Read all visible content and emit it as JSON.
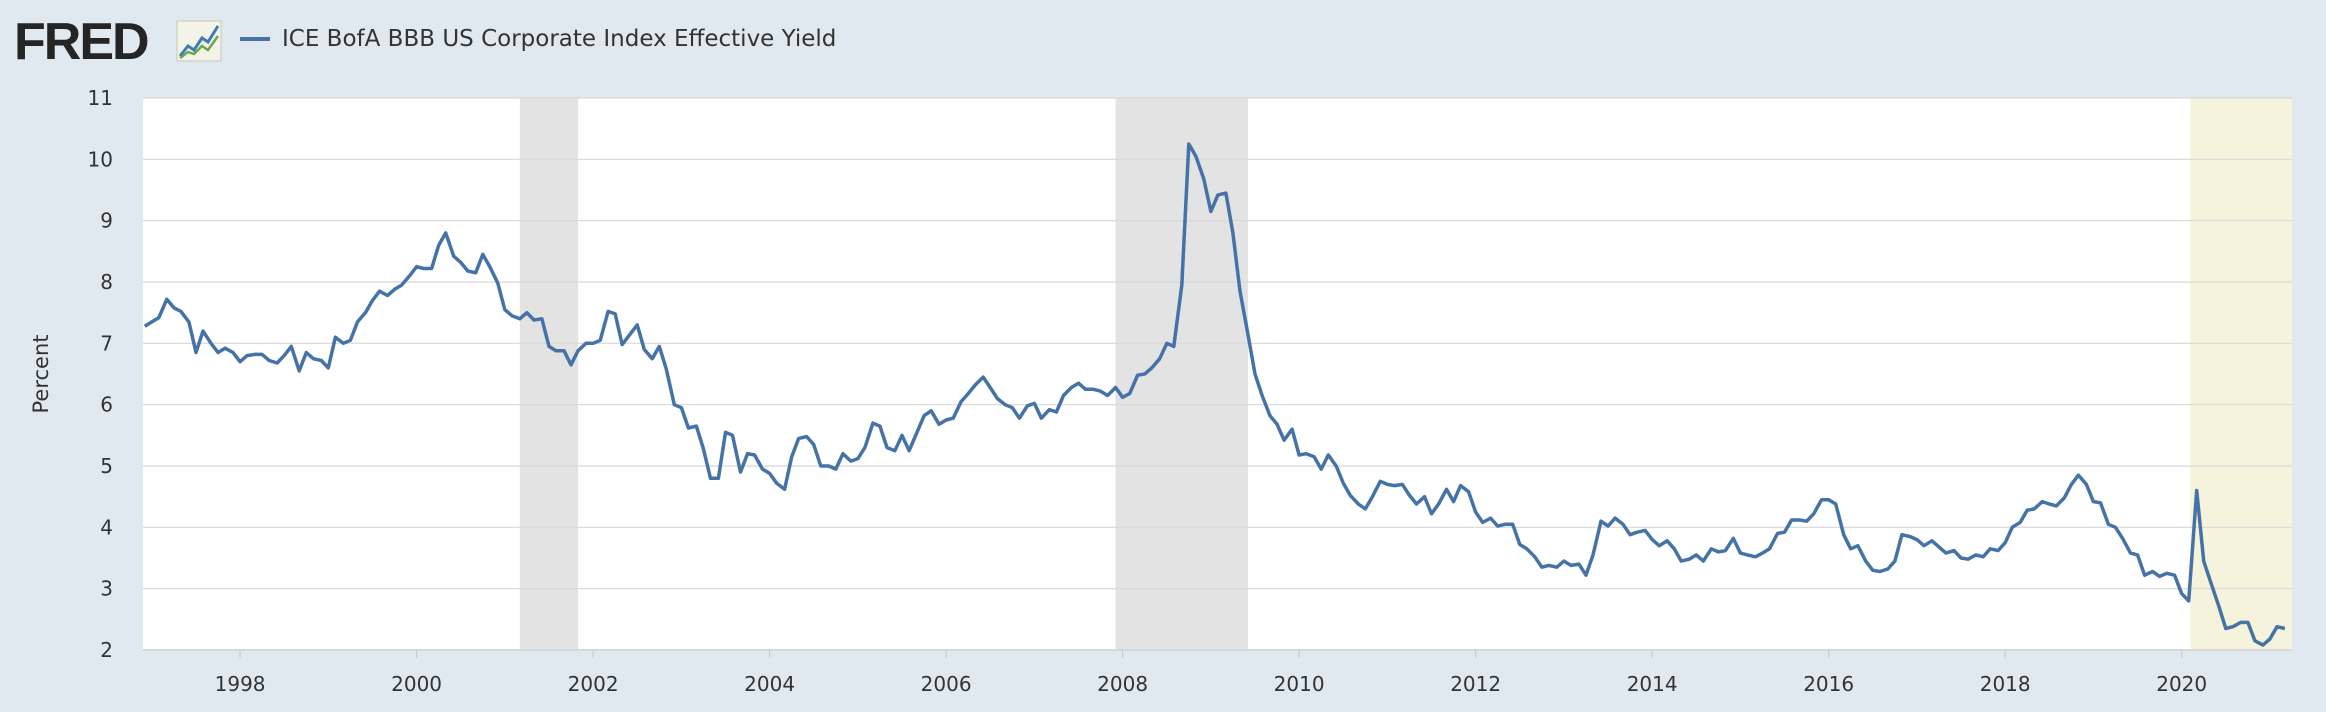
{
  "header": {
    "logo_text": "FRED",
    "logo_icon": "fred-chart-icon",
    "legend_label": "ICE BofA BBB US Corporate Index Effective Yield"
  },
  "colors": {
    "background": "#e1e9f0",
    "plot_background": "#ffffff",
    "series_line": "#4572a7",
    "recession_shade": "#e3e3e3",
    "highlight_shade": "#f5f3dc",
    "gridline": "#d8d8d8"
  },
  "chart_data": {
    "type": "line",
    "title": "",
    "xlabel": "",
    "ylabel": "Percent",
    "xlim": [
      1996.9,
      2021.25
    ],
    "ylim": [
      2,
      11
    ],
    "grid": true,
    "legend_position": "top-left",
    "x_ticks": [
      "1998",
      "2000",
      "2002",
      "2004",
      "2006",
      "2008",
      "2010",
      "2012",
      "2014",
      "2016",
      "2018",
      "2020"
    ],
    "y_ticks": [
      "2",
      "3",
      "4",
      "5",
      "6",
      "7",
      "8",
      "9",
      "10",
      "11"
    ],
    "shaded_periods": [
      {
        "start": 2001.17,
        "end": 2001.83,
        "kind": "recession"
      },
      {
        "start": 2007.92,
        "end": 2009.42,
        "kind": "recession"
      },
      {
        "start": 2020.1,
        "end": 2021.25,
        "kind": "highlight"
      }
    ],
    "series": [
      {
        "name": "ICE BofA BBB US Corporate Index Effective Yield",
        "x": [
          1996.92,
          1997.0,
          1997.08,
          1997.17,
          1997.25,
          1997.33,
          1997.42,
          1997.5,
          1997.58,
          1997.67,
          1997.75,
          1997.83,
          1997.92,
          1998.0,
          1998.08,
          1998.17,
          1998.25,
          1998.33,
          1998.42,
          1998.5,
          1998.58,
          1998.67,
          1998.75,
          1998.83,
          1998.92,
          1999.0,
          1999.08,
          1999.17,
          1999.25,
          1999.33,
          1999.42,
          1999.5,
          1999.58,
          1999.67,
          1999.75,
          1999.83,
          1999.92,
          2000.0,
          2000.08,
          2000.17,
          2000.25,
          2000.33,
          2000.42,
          2000.5,
          2000.58,
          2000.67,
          2000.75,
          2000.83,
          2000.92,
          2001.0,
          2001.08,
          2001.17,
          2001.25,
          2001.33,
          2001.42,
          2001.5,
          2001.58,
          2001.67,
          2001.75,
          2001.83,
          2001.92,
          2002.0,
          2002.08,
          2002.17,
          2002.25,
          2002.33,
          2002.42,
          2002.5,
          2002.58,
          2002.67,
          2002.75,
          2002.83,
          2002.92,
          2003.0,
          2003.08,
          2003.17,
          2003.25,
          2003.33,
          2003.42,
          2003.5,
          2003.58,
          2003.67,
          2003.75,
          2003.83,
          2003.92,
          2004.0,
          2004.08,
          2004.17,
          2004.25,
          2004.33,
          2004.42,
          2004.5,
          2004.58,
          2004.67,
          2004.75,
          2004.83,
          2004.92,
          2005.0,
          2005.08,
          2005.17,
          2005.25,
          2005.33,
          2005.42,
          2005.5,
          2005.58,
          2005.67,
          2005.75,
          2005.83,
          2005.92,
          2006.0,
          2006.08,
          2006.17,
          2006.25,
          2006.33,
          2006.42,
          2006.5,
          2006.58,
          2006.67,
          2006.75,
          2006.83,
          2006.92,
          2007.0,
          2007.08,
          2007.17,
          2007.25,
          2007.33,
          2007.42,
          2007.5,
          2007.58,
          2007.67,
          2007.75,
          2007.83,
          2007.92,
          2008.0,
          2008.08,
          2008.17,
          2008.25,
          2008.33,
          2008.42,
          2008.5,
          2008.58,
          2008.67,
          2008.75,
          2008.83,
          2008.92,
          2009.0,
          2009.08,
          2009.17,
          2009.25,
          2009.33,
          2009.42,
          2009.5,
          2009.58,
          2009.67,
          2009.75,
          2009.83,
          2009.92,
          2010.0,
          2010.08,
          2010.17,
          2010.25,
          2010.33,
          2010.42,
          2010.5,
          2010.58,
          2010.67,
          2010.75,
          2010.83,
          2010.92,
          2011.0,
          2011.08,
          2011.17,
          2011.25,
          2011.33,
          2011.42,
          2011.5,
          2011.58,
          2011.67,
          2011.75,
          2011.83,
          2011.92,
          2012.0,
          2012.08,
          2012.17,
          2012.25,
          2012.33,
          2012.42,
          2012.5,
          2012.58,
          2012.67,
          2012.75,
          2012.83,
          2012.92,
          2013.0,
          2013.08,
          2013.17,
          2013.25,
          2013.33,
          2013.42,
          2013.5,
          2013.58,
          2013.67,
          2013.75,
          2013.83,
          2013.92,
          2014.0,
          2014.08,
          2014.17,
          2014.25,
          2014.33,
          2014.42,
          2014.5,
          2014.58,
          2014.67,
          2014.75,
          2014.83,
          2014.92,
          2015.0,
          2015.08,
          2015.17,
          2015.25,
          2015.33,
          2015.42,
          2015.5,
          2015.58,
          2015.67,
          2015.75,
          2015.83,
          2015.92,
          2016.0,
          2016.08,
          2016.17,
          2016.25,
          2016.33,
          2016.42,
          2016.5,
          2016.58,
          2016.67,
          2016.75,
          2016.83,
          2016.92,
          2017.0,
          2017.08,
          2017.17,
          2017.25,
          2017.33,
          2017.42,
          2017.5,
          2017.58,
          2017.67,
          2017.75,
          2017.83,
          2017.92,
          2018.0,
          2018.08,
          2018.17,
          2018.25,
          2018.33,
          2018.42,
          2018.5,
          2018.58,
          2018.67,
          2018.75,
          2018.83,
          2018.92,
          2019.0,
          2019.08,
          2019.17,
          2019.25,
          2019.33,
          2019.42,
          2019.5,
          2019.58,
          2019.67,
          2019.75,
          2019.83,
          2019.92,
          2020.0,
          2020.08,
          2020.17,
          2020.25,
          2020.33,
          2020.42,
          2020.5,
          2020.58,
          2020.67,
          2020.75,
          2020.83,
          2020.92,
          2021.0,
          2021.08,
          2021.17
        ],
        "values": [
          7.28,
          7.35,
          7.42,
          7.72,
          7.58,
          7.52,
          7.35,
          6.85,
          7.2,
          7.0,
          6.85,
          6.92,
          6.85,
          6.7,
          6.8,
          6.82,
          6.82,
          6.72,
          6.68,
          6.8,
          6.95,
          6.55,
          6.85,
          6.75,
          6.72,
          6.6,
          7.1,
          7.0,
          7.05,
          7.35,
          7.5,
          7.7,
          7.85,
          7.78,
          7.88,
          7.95,
          8.1,
          8.25,
          8.22,
          8.22,
          8.6,
          8.8,
          8.42,
          8.32,
          8.18,
          8.15,
          8.45,
          8.25,
          7.98,
          7.55,
          7.45,
          7.4,
          7.5,
          7.38,
          7.4,
          6.95,
          6.88,
          6.88,
          6.65,
          6.88,
          7.0,
          7.0,
          7.05,
          7.52,
          7.48,
          6.98,
          7.15,
          7.3,
          6.9,
          6.75,
          6.95,
          6.58,
          6.0,
          5.95,
          5.62,
          5.65,
          5.28,
          4.8,
          4.8,
          5.55,
          5.5,
          4.9,
          5.2,
          5.18,
          4.95,
          4.88,
          4.72,
          4.62,
          5.15,
          5.45,
          5.48,
          5.35,
          5.0,
          5.0,
          4.95,
          5.2,
          5.08,
          5.12,
          5.3,
          5.7,
          5.65,
          5.3,
          5.25,
          5.5,
          5.25,
          5.55,
          5.82,
          5.9,
          5.68,
          5.75,
          5.78,
          6.05,
          6.18,
          6.32,
          6.45,
          6.28,
          6.1,
          6.0,
          5.95,
          5.78,
          5.98,
          6.02,
          5.78,
          5.92,
          5.88,
          6.15,
          6.28,
          6.35,
          6.25,
          6.25,
          6.22,
          6.15,
          6.28,
          6.12,
          6.18,
          6.48,
          6.5,
          6.6,
          6.75,
          7.0,
          6.95,
          7.95,
          10.25,
          10.05,
          9.68,
          9.15,
          9.42,
          9.45,
          8.8,
          7.85,
          7.15,
          6.5,
          6.15,
          5.82,
          5.68,
          5.42,
          5.6,
          5.18,
          5.2,
          5.15,
          4.95,
          5.18,
          5.0,
          4.72,
          4.52,
          4.38,
          4.3,
          4.5,
          4.75,
          4.7,
          4.68,
          4.7,
          4.52,
          4.38,
          4.5,
          4.22,
          4.38,
          4.62,
          4.42,
          4.68,
          4.58,
          4.25,
          4.08,
          4.15,
          4.02,
          4.05,
          4.05,
          3.72,
          3.65,
          3.52,
          3.35,
          3.38,
          3.35,
          3.45,
          3.38,
          3.4,
          3.22,
          3.55,
          4.1,
          4.02,
          4.15,
          4.05,
          3.88,
          3.92,
          3.95,
          3.8,
          3.7,
          3.78,
          3.65,
          3.45,
          3.48,
          3.55,
          3.45,
          3.65,
          3.6,
          3.62,
          3.82,
          3.58,
          3.55,
          3.52,
          3.58,
          3.65,
          3.9,
          3.92,
          4.12,
          4.12,
          4.1,
          4.22,
          4.45,
          4.45,
          4.38,
          3.88,
          3.65,
          3.7,
          3.45,
          3.3,
          3.28,
          3.32,
          3.45,
          3.88,
          3.85,
          3.8,
          3.7,
          3.78,
          3.68,
          3.58,
          3.62,
          3.5,
          3.48,
          3.55,
          3.52,
          3.65,
          3.62,
          3.75,
          4.0,
          4.08,
          4.28,
          4.3,
          4.42,
          4.38,
          4.35,
          4.48,
          4.7,
          4.85,
          4.7,
          4.42,
          4.4,
          4.05,
          4.0,
          3.82,
          3.58,
          3.55,
          3.22,
          3.28,
          3.2,
          3.25,
          3.22,
          2.92,
          2.8,
          4.6,
          3.45,
          3.1,
          2.72,
          2.35,
          2.38,
          2.45,
          2.45,
          2.15,
          2.08,
          2.18,
          2.38,
          2.35
        ]
      }
    ]
  }
}
